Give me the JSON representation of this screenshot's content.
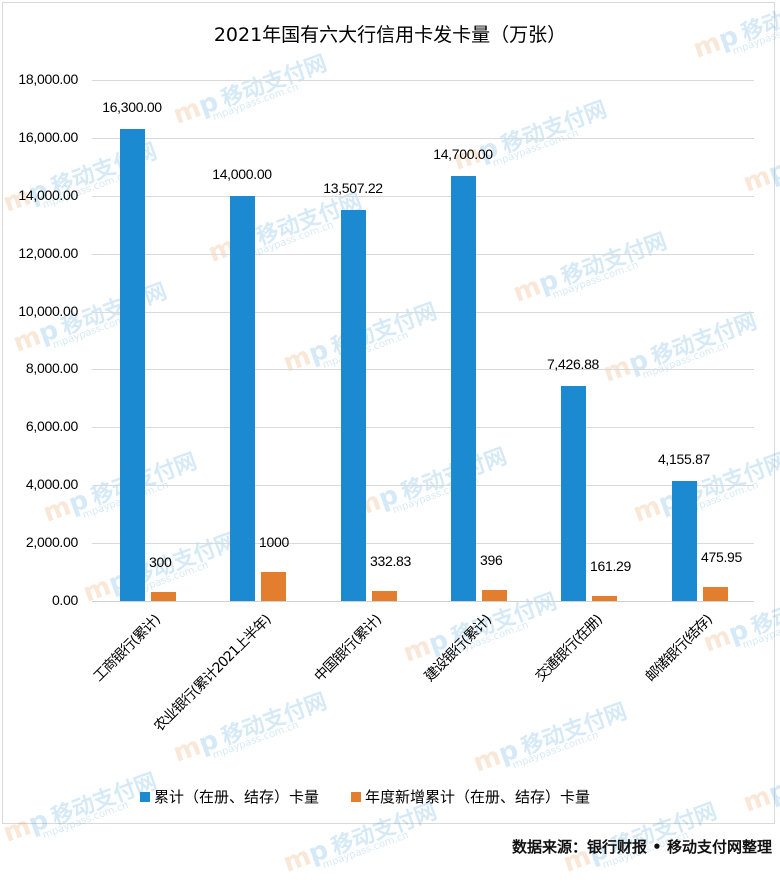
{
  "chart_data": {
    "type": "bar",
    "title": "2021年国有六大行信用卡发卡量（万张）",
    "xlabel": "",
    "ylabel": "",
    "ylim": [
      0,
      18000
    ],
    "yticks": [
      "0.00",
      "2,000.00",
      "4,000.00",
      "6,000.00",
      "8,000.00",
      "10,000.00",
      "12,000.00",
      "14,000.00",
      "16,000.00",
      "18,000.00"
    ],
    "ytick_values": [
      0,
      2000,
      4000,
      6000,
      8000,
      10000,
      12000,
      14000,
      16000,
      18000
    ],
    "grid": true,
    "legend_position": "bottom",
    "categories": [
      "工商银行(累计)",
      "农业银行(累计2021上半年)",
      "中国银行(累计)",
      "建设银行(累计)",
      "交通银行(在册)",
      "邮储银行(结存)"
    ],
    "series": [
      {
        "name": "累计（在册、结存）卡量",
        "color": "#1c8ad0",
        "values": [
          16300,
          14000,
          13507.22,
          14700,
          7426.88,
          4155.87
        ],
        "labels": [
          "16,300.00",
          "14,000.00",
          "13,507.22",
          "14,700.00",
          "7,426.88",
          "4,155.87"
        ]
      },
      {
        "name": "年度新增累计（在册、结存）卡量",
        "color": "#e37e2e",
        "values": [
          300,
          1000,
          332.83,
          396,
          161.29,
          475.95
        ],
        "labels": [
          "300",
          "1000",
          "332.83",
          "396",
          "161.29",
          "475.95"
        ]
      }
    ]
  },
  "source": "数据来源：银行财报 • 移动支付网整理",
  "watermark": {
    "logo": "mp",
    "name": "移动支付网",
    "url": "mpaypass.com.cn"
  }
}
